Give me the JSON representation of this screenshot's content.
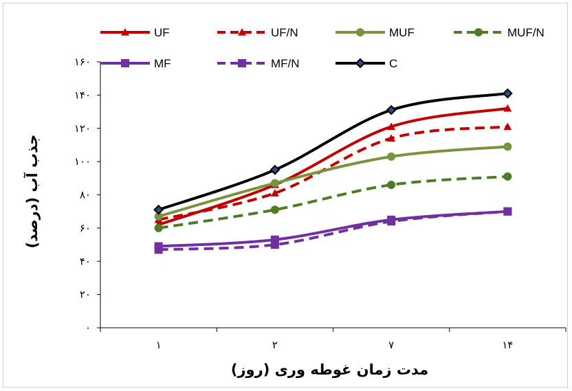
{
  "chart_data": {
    "type": "line",
    "title": "",
    "xlabel": "مدت زمان غوطه وری (روز)",
    "ylabel": "جذب آب (درصد)",
    "categories": [
      "۱",
      "۲",
      "۷",
      "۱۴"
    ],
    "ylim": [
      0,
      160
    ],
    "yticks": [
      0,
      20,
      40,
      60,
      80,
      100,
      120,
      140,
      160
    ],
    "ytick_labels": [
      "۰",
      "۲۰",
      "۴۰",
      "۶۰",
      "۸۰",
      "۱۰۰",
      "۱۲۰",
      "۱۴۰",
      "۱۶۰"
    ],
    "grid": false,
    "legend_position": "top",
    "series": [
      {
        "name": "UF",
        "values": [
          62,
          86,
          121,
          132
        ],
        "color": "#c00000",
        "dash": "solid",
        "marker": "triangle"
      },
      {
        "name": "UF/N",
        "values": [
          65,
          81,
          114,
          121
        ],
        "color": "#c00000",
        "dash": "dashed",
        "marker": "triangle"
      },
      {
        "name": "MUF",
        "values": [
          67,
          87,
          103,
          109
        ],
        "color": "#77933c",
        "dash": "solid",
        "marker": "circle"
      },
      {
        "name": "MUF/N",
        "values": [
          60,
          71,
          86,
          91
        ],
        "color": "#4f7a28",
        "dash": "dashed",
        "marker": "circle"
      },
      {
        "name": "MF",
        "values": [
          49,
          53,
          65,
          70
        ],
        "color": "#7030a0",
        "dash": "solid",
        "marker": "square"
      },
      {
        "name": "MF/N",
        "values": [
          47,
          50,
          64,
          70
        ],
        "color": "#7030a0",
        "dash": "dashed",
        "marker": "square"
      },
      {
        "name": "C",
        "values": [
          71,
          95,
          131,
          141
        ],
        "color": "#000000",
        "dash": "solid",
        "marker": "diamond"
      }
    ]
  }
}
